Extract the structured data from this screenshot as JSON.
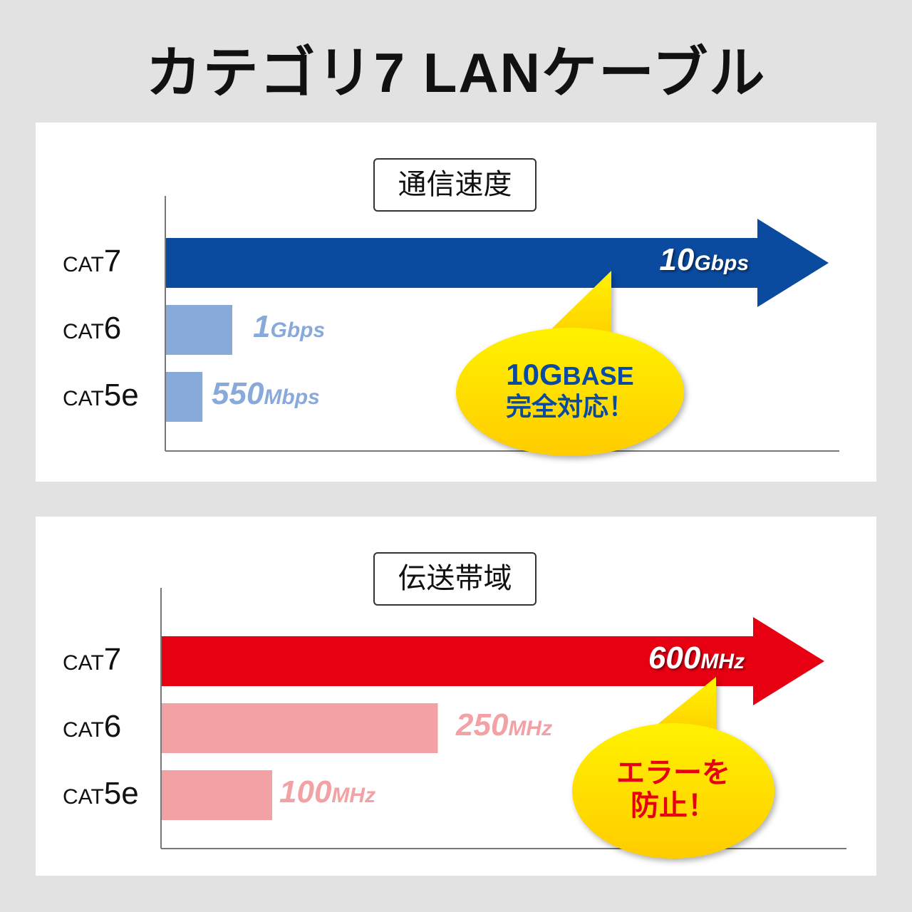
{
  "title": "カテゴリ7 LANケーブル",
  "chart_data": [
    {
      "type": "bar",
      "orientation": "horizontal",
      "title": "通信速度",
      "categories": [
        "CAT7",
        "CAT6",
        "CAT5e"
      ],
      "category_parts": [
        [
          "CAT",
          "7"
        ],
        [
          "CAT",
          "6"
        ],
        [
          "CAT",
          "5e"
        ]
      ],
      "values_mbps": [
        10000,
        1000,
        550
      ],
      "data_labels": [
        [
          "10",
          "Gbps"
        ],
        [
          "1",
          "Gbps"
        ],
        [
          "550",
          "Mbps"
        ]
      ],
      "colors": [
        "#0a4a9f",
        "#88aadb",
        "#88aadb"
      ],
      "label_colors": [
        "#ffffff",
        "#88aadb",
        "#88aadb"
      ],
      "callout": {
        "line1_a": "10G",
        "line1_b": "BASE",
        "line2": "完全対応！",
        "text_color": "#0a4a9f"
      }
    },
    {
      "type": "bar",
      "orientation": "horizontal",
      "title": "伝送帯域",
      "categories": [
        "CAT7",
        "CAT6",
        "CAT5e"
      ],
      "category_parts": [
        [
          "CAT",
          "7"
        ],
        [
          "CAT",
          "6"
        ],
        [
          "CAT",
          "5e"
        ]
      ],
      "values_mhz": [
        600,
        250,
        100
      ],
      "data_labels": [
        [
          "600",
          "MHz"
        ],
        [
          "250",
          "MHz"
        ],
        [
          "100",
          "MHz"
        ]
      ],
      "colors": [
        "#e60012",
        "#f2a1a4",
        "#f2a1a4"
      ],
      "label_colors": [
        "#ffffff",
        "#f2a1a4",
        "#f2a1a4"
      ],
      "callout": {
        "line1": "エラーを",
        "line2": "防止！",
        "text_color": "#e60012"
      }
    }
  ]
}
